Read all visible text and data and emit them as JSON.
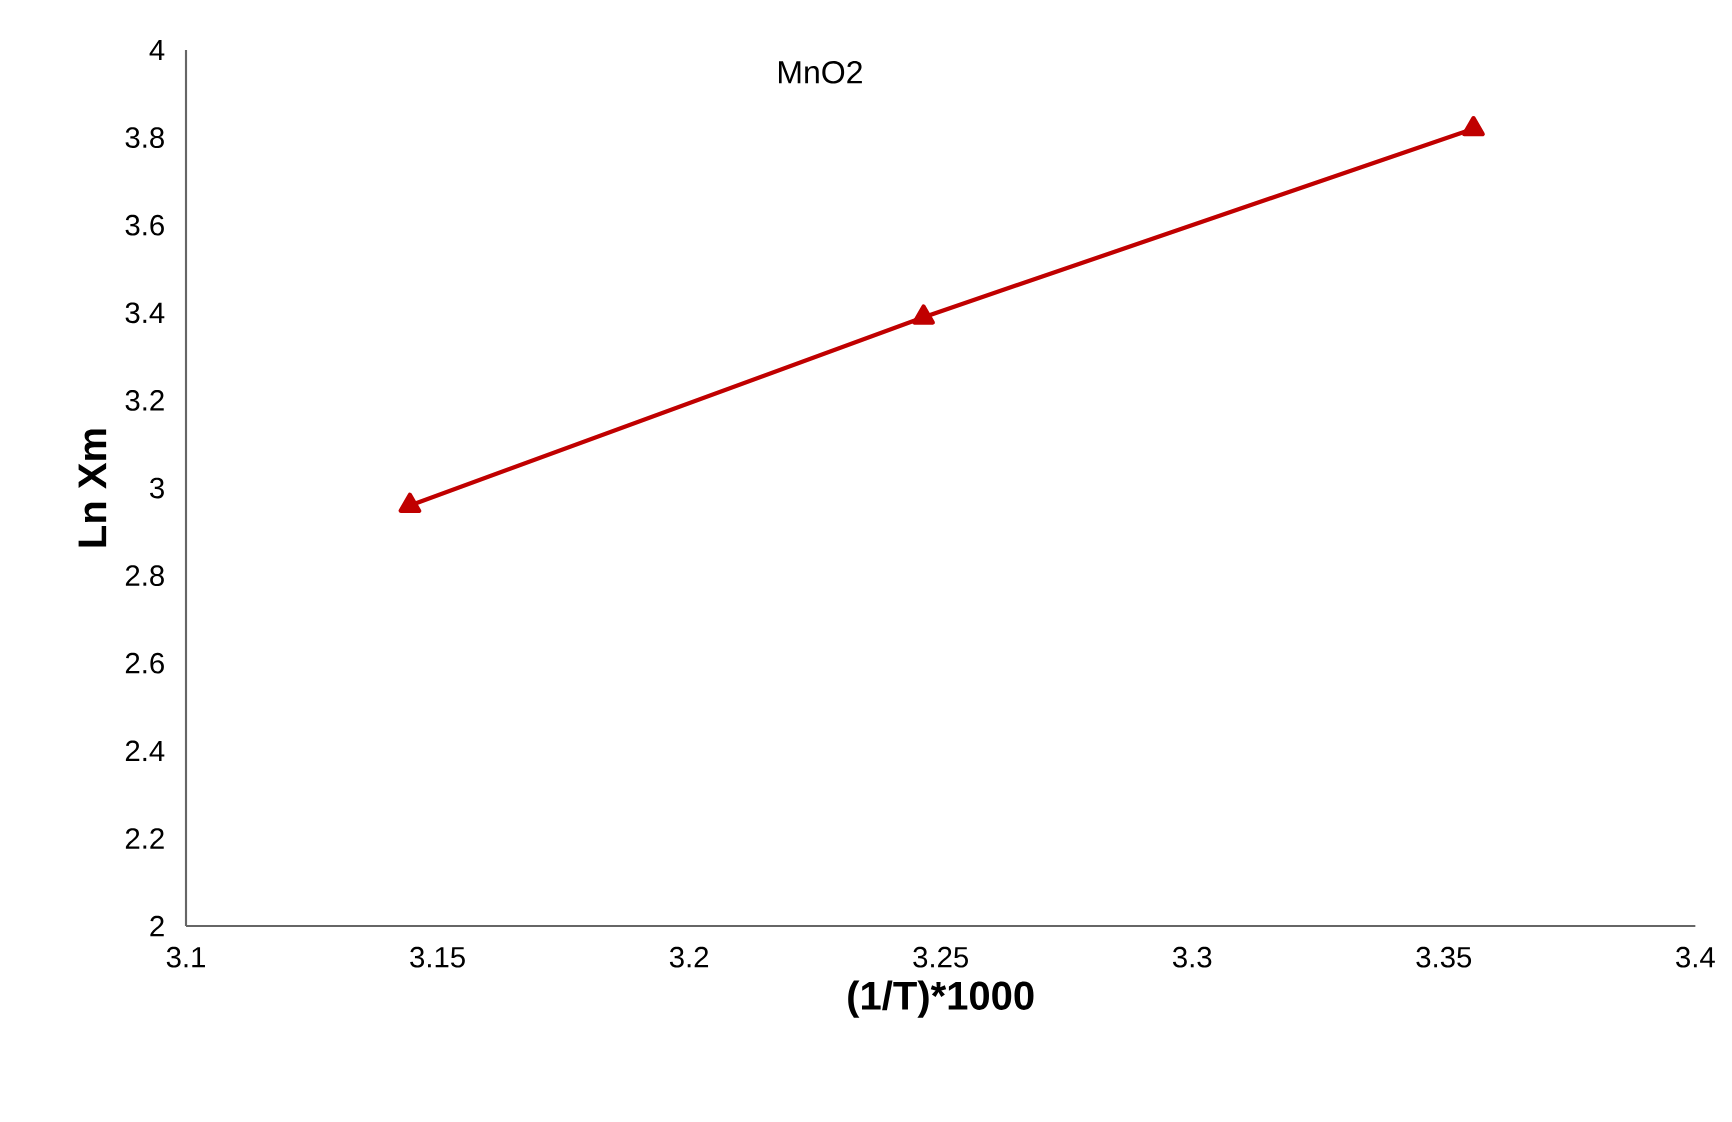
{
  "chart_data": {
    "type": "line",
    "title": "MnO2",
    "xlabel": "(1/T)*1000",
    "ylabel": "Ln Xm",
    "xlim": [
      3.1,
      3.4
    ],
    "xticks": [
      3.1,
      3.15,
      3.2,
      3.25,
      3.3,
      3.35,
      3.4
    ],
    "ylim": [
      2,
      4
    ],
    "yticks": [
      2,
      2.2,
      2.4,
      2.6,
      2.8,
      3,
      3.2,
      3.4,
      3.6,
      3.8,
      4
    ],
    "series": [
      {
        "color": "#c00000",
        "x": [
          3.1445,
          3.2466,
          3.3559
        ],
        "values": [
          2.96,
          3.39,
          3.82
        ]
      }
    ],
    "marker": "triangle",
    "line_style": "solid"
  }
}
